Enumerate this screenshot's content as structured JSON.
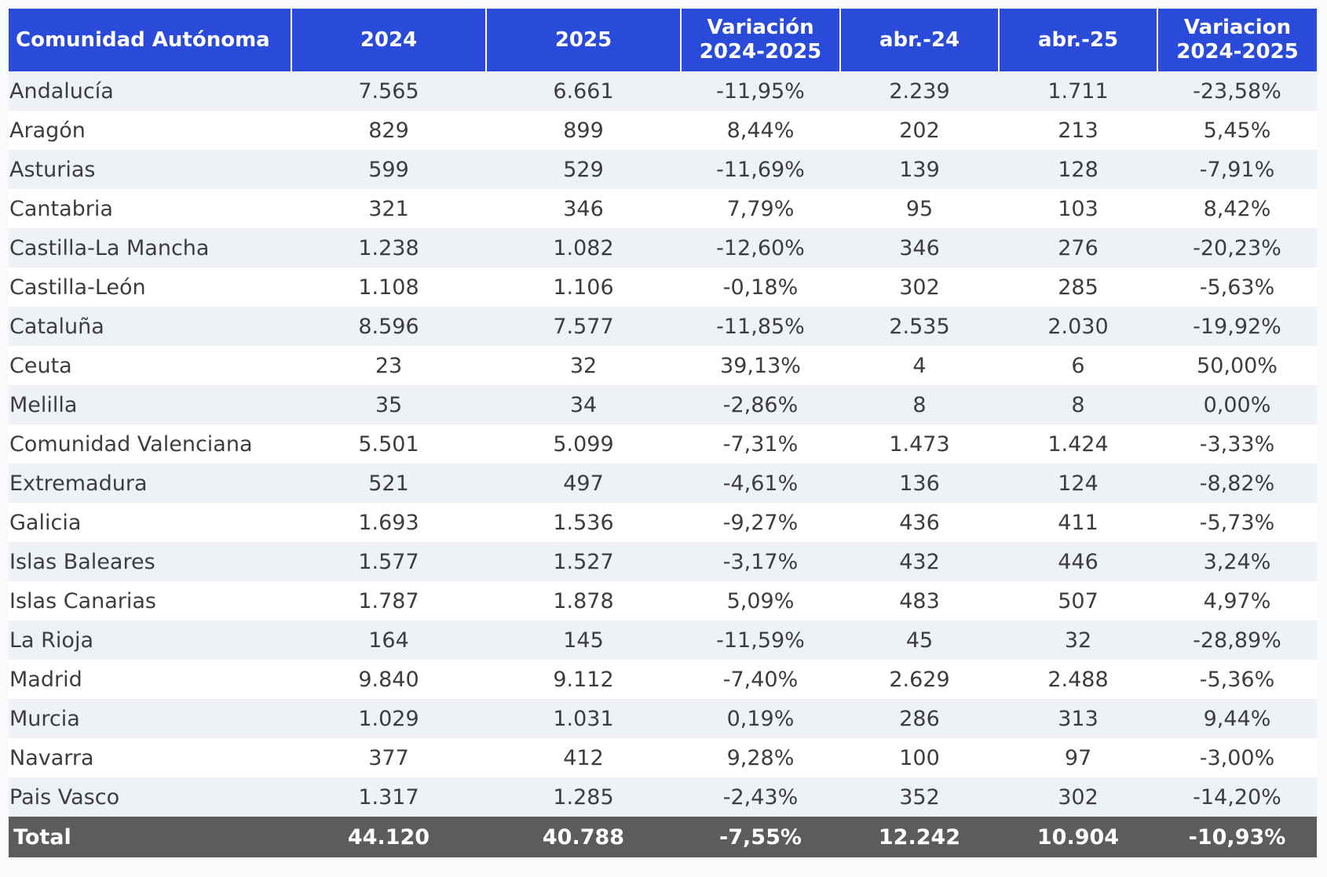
{
  "chart_data": {
    "type": "table",
    "columns": [
      "Comunidad Autónoma",
      "2024",
      "2025",
      "Variación\n2024-2025",
      "abr.-24",
      "abr.-25",
      "Variacion\n2024-2025"
    ],
    "rows": [
      [
        "Andalucía",
        "7.565",
        "6.661",
        "-11,95%",
        "2.239",
        "1.711",
        "-23,58%"
      ],
      [
        "Aragón",
        "829",
        "899",
        "8,44%",
        "202",
        "213",
        "5,45%"
      ],
      [
        "Asturias",
        "599",
        "529",
        "-11,69%",
        "139",
        "128",
        "-7,91%"
      ],
      [
        "Cantabria",
        "321",
        "346",
        "7,79%",
        "95",
        "103",
        "8,42%"
      ],
      [
        "Castilla-La Mancha",
        "1.238",
        "1.082",
        "-12,60%",
        "346",
        "276",
        "-20,23%"
      ],
      [
        "Castilla-León",
        "1.108",
        "1.106",
        "-0,18%",
        "302",
        "285",
        "-5,63%"
      ],
      [
        "Cataluña",
        "8.596",
        "7.577",
        "-11,85%",
        "2.535",
        "2.030",
        "-19,92%"
      ],
      [
        "Ceuta",
        "23",
        "32",
        "39,13%",
        "4",
        "6",
        "50,00%"
      ],
      [
        "Melilla",
        "35",
        "34",
        "-2,86%",
        "8",
        "8",
        "0,00%"
      ],
      [
        "Comunidad Valenciana",
        "5.501",
        "5.099",
        "-7,31%",
        "1.473",
        "1.424",
        "-3,33%"
      ],
      [
        "Extremadura",
        "521",
        "497",
        "-4,61%",
        "136",
        "124",
        "-8,82%"
      ],
      [
        "Galicia",
        "1.693",
        "1.536",
        "-9,27%",
        "436",
        "411",
        "-5,73%"
      ],
      [
        "Islas Baleares",
        "1.577",
        "1.527",
        "-3,17%",
        "432",
        "446",
        "3,24%"
      ],
      [
        "Islas Canarias",
        "1.787",
        "1.878",
        "5,09%",
        "483",
        "507",
        "4,97%"
      ],
      [
        "La Rioja",
        "164",
        "145",
        "-11,59%",
        "45",
        "32",
        "-28,89%"
      ],
      [
        "Madrid",
        "9.840",
        "9.112",
        "-7,40%",
        "2.629",
        "2.488",
        "-5,36%"
      ],
      [
        "Murcia",
        "1.029",
        "1.031",
        "0,19%",
        "286",
        "313",
        "9,44%"
      ],
      [
        "Navarra",
        "377",
        "412",
        "9,28%",
        "100",
        "97",
        "-3,00%"
      ],
      [
        "Pais Vasco",
        "1.317",
        "1.285",
        "-2,43%",
        "352",
        "302",
        "-14,20%"
      ]
    ],
    "total": [
      "Total",
      "44.120",
      "40.788",
      "-7,55%",
      "12.242",
      "10.904",
      "-10,93%"
    ],
    "colors": {
      "header_background": "#2a4bd9",
      "header_text": "#ffffff",
      "row_stripe": "#eef2f7",
      "row_plain": "#ffffff",
      "body_text": "#3d3d3d",
      "total_background": "#5c5c5c",
      "total_text": "#ffffff"
    }
  }
}
